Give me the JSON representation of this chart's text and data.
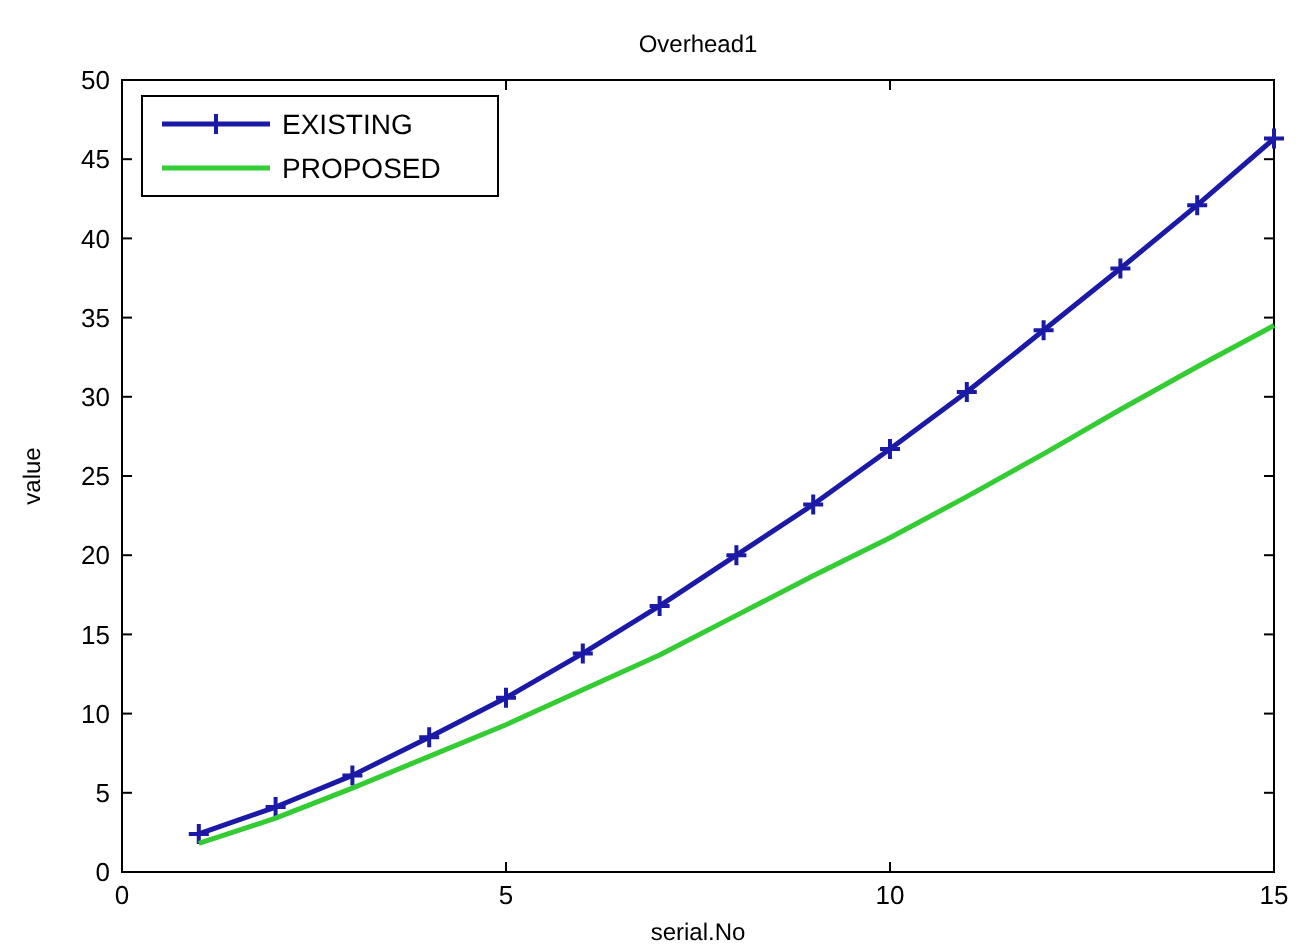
{
  "chart_data": {
    "type": "line",
    "title": "Overhead1",
    "xlabel": "serial.No",
    "ylabel": "value",
    "x": [
      1,
      2,
      3,
      4,
      5,
      6,
      7,
      8,
      9,
      10,
      11,
      12,
      13,
      14,
      15
    ],
    "series": [
      {
        "name": "EXISTING",
        "color": "#1a1aa6",
        "marker": "cross",
        "values": [
          2.4,
          4.1,
          6.1,
          8.5,
          11,
          13.8,
          16.8,
          20,
          23.2,
          26.7,
          30.3,
          34.2,
          38.1,
          42.1,
          46.3
        ]
      },
      {
        "name": "PROPOSED",
        "color": "#33cc33",
        "marker": "none",
        "values": [
          1.8,
          3.4,
          5.3,
          7.3,
          9.3,
          11.5,
          13.7,
          16.2,
          18.7,
          21.1,
          23.7,
          26.4,
          29.2,
          31.9,
          34.5
        ]
      }
    ],
    "xlim": [
      0,
      15
    ],
    "xticks": [
      0,
      5,
      10,
      15
    ],
    "ylim": [
      0,
      50
    ],
    "yticks": [
      0,
      5,
      10,
      15,
      20,
      25,
      30,
      35,
      40,
      45,
      50
    ],
    "grid": false,
    "legend": "top left",
    "line_style": "solid"
  }
}
